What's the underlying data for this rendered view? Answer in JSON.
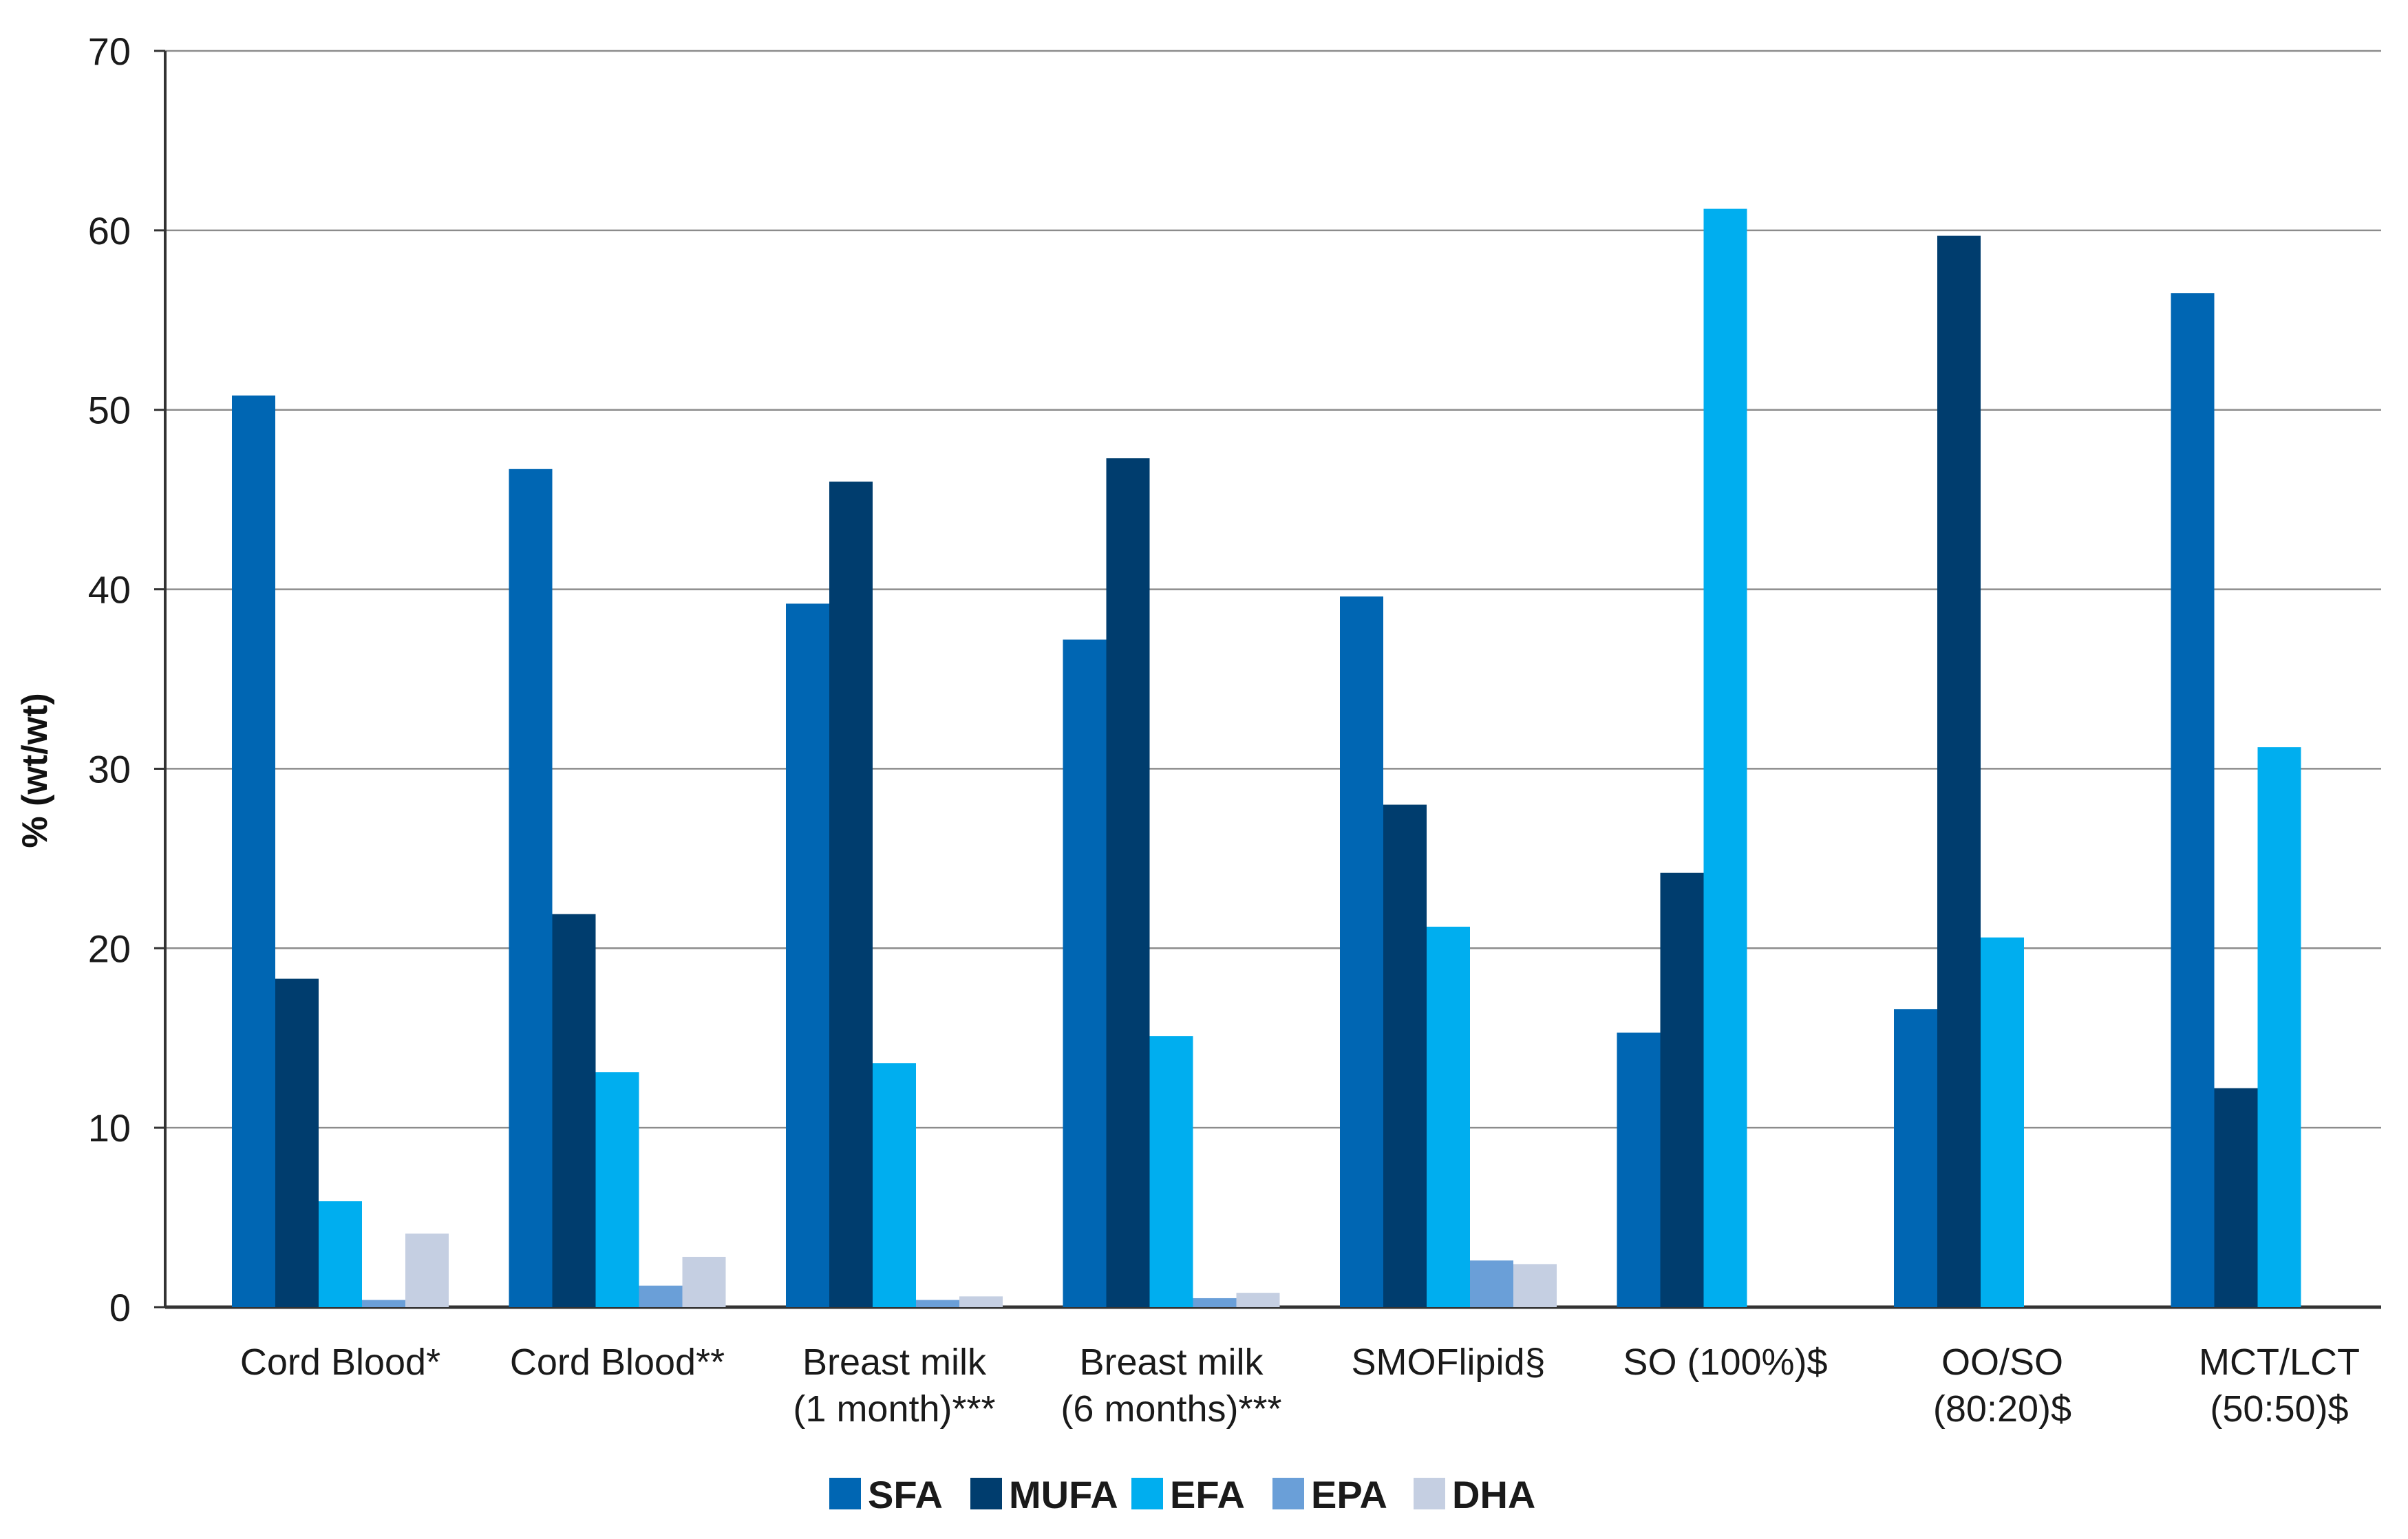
{
  "chart_data": {
    "type": "bar",
    "title": "",
    "xlabel": "",
    "ylabel": "% (wt/wt)",
    "ylim": [
      0,
      70
    ],
    "yticks": [
      0,
      10,
      20,
      30,
      40,
      50,
      60,
      70
    ],
    "grid": true,
    "legend_position": "bottom-center",
    "categories": [
      [
        "Cord Blood*"
      ],
      [
        "Cord Blood**"
      ],
      [
        "Breast milk",
        "(1 month)***"
      ],
      [
        "Breast milk",
        "(6 months)***"
      ],
      [
        "SMOFlipid§"
      ],
      [
        "SO (100%)$"
      ],
      [
        "OO/SO",
        "(80:20)$"
      ],
      [
        "MCT/LCT",
        "(50:50)$"
      ]
    ],
    "series": [
      {
        "name": "SFA",
        "color": "#0066b3",
        "values": [
          50.8,
          46.7,
          39.2,
          37.2,
          39.6,
          15.3,
          16.6,
          56.5
        ]
      },
      {
        "name": "MUFA",
        "color": "#003d6e",
        "values": [
          18.3,
          21.9,
          46.0,
          47.3,
          28.0,
          24.2,
          59.7,
          12.2
        ]
      },
      {
        "name": "EFA",
        "color": "#00aeef",
        "values": [
          5.9,
          13.1,
          13.6,
          15.1,
          21.2,
          61.2,
          20.6,
          31.2
        ]
      },
      {
        "name": "EPA",
        "color": "#6a9fd8",
        "values": [
          0.4,
          1.2,
          0.4,
          0.5,
          2.6,
          0,
          0,
          0
        ]
      },
      {
        "name": "DHA",
        "color": "#c5cfe2",
        "values": [
          4.1,
          2.8,
          0.6,
          0.8,
          2.4,
          0,
          0,
          0
        ]
      }
    ]
  }
}
